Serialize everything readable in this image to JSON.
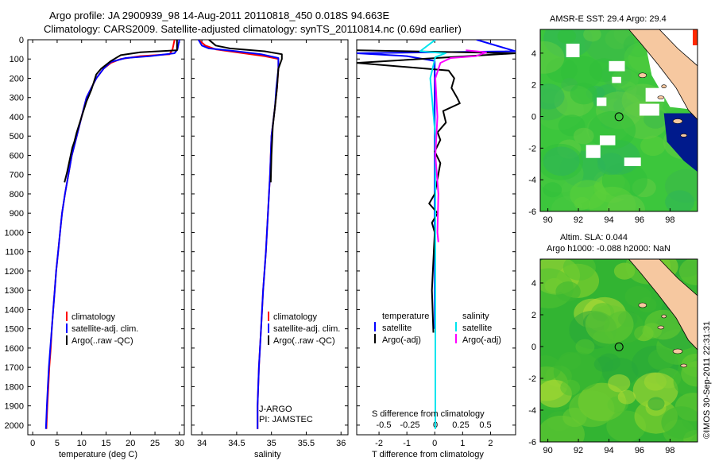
{
  "header": {
    "line1": "Argo profile: JA 2900939_98 14-Aug-2011 20110818_450 0.018S 94.663E",
    "line2": "Climatology: CARS2009. Satellite-adjusted climatology: synTS_20110814.nc (0.69d earlier)"
  },
  "colors": {
    "climatology": "#ff0000",
    "satellite": "#0000ff",
    "argo": "#000000",
    "satellite_s": "#00e5ee",
    "argo_s": "#ff00ff",
    "land": "#f6c8a0",
    "ocean_green": "#40c840",
    "cold": "#001a8c"
  },
  "chart_data": [
    {
      "type": "line",
      "name": "temperature",
      "xlabel": "temperature (deg C)",
      "ylabel": "",
      "xlim": [
        -1,
        31
      ],
      "ylim": [
        2050,
        0
      ],
      "xticks": [
        "0",
        "5",
        "10",
        "15",
        "20",
        "25",
        "30"
      ],
      "yticks": [
        "0",
        "100",
        "200",
        "300",
        "400",
        "500",
        "600",
        "700",
        "800",
        "900",
        "1000",
        "1100",
        "1200",
        "1300",
        "1400",
        "1500",
        "1600",
        "1700",
        "1800",
        "1900",
        "2000"
      ],
      "legend": [
        "climatology",
        "satellite-adj. clim.",
        "Argo(..raw -QC)"
      ],
      "series": [
        {
          "name": "climatology",
          "points": [
            [
              29,
              0
            ],
            [
              28.6,
              50
            ],
            [
              28,
              75
            ],
            [
              22,
              85
            ],
            [
              18,
              100
            ],
            [
              16,
              120
            ],
            [
              14.5,
              150
            ],
            [
              13,
              200
            ],
            [
              12,
              250
            ],
            [
              11,
              300
            ],
            [
              10,
              400
            ],
            [
              9,
              500
            ],
            [
              8,
              600
            ],
            [
              7.3,
              700
            ],
            [
              6.6,
              800
            ],
            [
              6,
              900
            ],
            [
              5.6,
              1000
            ],
            [
              5.2,
              1100
            ],
            [
              4.8,
              1200
            ],
            [
              4.5,
              1300
            ],
            [
              4.2,
              1400
            ],
            [
              3.9,
              1500
            ],
            [
              3.7,
              1600
            ],
            [
              3.4,
              1700
            ],
            [
              3.2,
              1800
            ],
            [
              3,
              1900
            ],
            [
              2.8,
              2020
            ]
          ]
        },
        {
          "name": "satellite-adj. clim.",
          "points": [
            [
              30,
              0
            ],
            [
              29.6,
              50
            ],
            [
              29,
              70
            ],
            [
              24,
              85
            ],
            [
              19,
              95
            ],
            [
              16,
              115
            ],
            [
              14.5,
              150
            ],
            [
              13,
              200
            ],
            [
              12,
              250
            ],
            [
              11,
              300
            ],
            [
              10,
              400
            ],
            [
              9,
              500
            ],
            [
              8,
              600
            ],
            [
              7.3,
              700
            ],
            [
              6.6,
              800
            ],
            [
              6,
              900
            ],
            [
              5.6,
              1000
            ],
            [
              5.2,
              1100
            ],
            [
              4.8,
              1200
            ],
            [
              4.5,
              1300
            ],
            [
              4.2,
              1400
            ],
            [
              3.9,
              1500
            ],
            [
              3.6,
              1600
            ],
            [
              3.3,
              1700
            ],
            [
              3.1,
              1800
            ],
            [
              2.9,
              1900
            ],
            [
              2.7,
              2020
            ]
          ]
        },
        {
          "name": "Argo(..raw -QC)",
          "points": [
            [
              29.5,
              0
            ],
            [
              29.5,
              55
            ],
            [
              22,
              65
            ],
            [
              18,
              80
            ],
            [
              16,
              110
            ],
            [
              14,
              150
            ],
            [
              13,
              180
            ],
            [
              12.5,
              220
            ],
            [
              12,
              260
            ],
            [
              11,
              320
            ],
            [
              10,
              400
            ],
            [
              9,
              480
            ],
            [
              8.5,
              530
            ],
            [
              8.1,
              560
            ],
            [
              7.6,
              620
            ],
            [
              7,
              690
            ],
            [
              6.5,
              740
            ]
          ]
        }
      ]
    },
    {
      "type": "line",
      "name": "salinity",
      "xlabel": "salinity",
      "ylabel": "",
      "xlim": [
        33.85,
        36.1
      ],
      "ylim": [
        2050,
        0
      ],
      "xticks": [
        "34",
        "34.5",
        "35",
        "35.5",
        "36"
      ],
      "legend": [
        "climatology",
        "satellite-adj. clim.",
        "Argo(..raw -QC)"
      ],
      "annotations": [
        "J-ARGO",
        "PI: JAMSTEC"
      ],
      "series": [
        {
          "name": "climatology",
          "points": [
            [
              33.95,
              0
            ],
            [
              34.05,
              30
            ],
            [
              34.2,
              50
            ],
            [
              34.6,
              70
            ],
            [
              34.9,
              85
            ],
            [
              35.1,
              100
            ],
            [
              35.1,
              150
            ],
            [
              35.08,
              250
            ],
            [
              35.05,
              350
            ],
            [
              35.0,
              500
            ],
            [
              34.98,
              700
            ],
            [
              34.95,
              900
            ],
            [
              34.92,
              1100
            ],
            [
              34.88,
              1300
            ],
            [
              34.85,
              1500
            ],
            [
              34.82,
              1700
            ],
            [
              34.8,
              1900
            ],
            [
              34.8,
              2020
            ]
          ]
        },
        {
          "name": "satellite-adj. clim.",
          "points": [
            [
              33.95,
              0
            ],
            [
              34.0,
              30
            ],
            [
              34.1,
              45
            ],
            [
              34.5,
              60
            ],
            [
              34.85,
              75
            ],
            [
              35.1,
              95
            ],
            [
              35.1,
              150
            ],
            [
              35.07,
              250
            ],
            [
              35.05,
              350
            ],
            [
              35.0,
              500
            ],
            [
              34.98,
              700
            ],
            [
              34.95,
              900
            ],
            [
              34.92,
              1100
            ],
            [
              34.88,
              1300
            ],
            [
              34.85,
              1500
            ],
            [
              34.82,
              1700
            ],
            [
              34.8,
              1900
            ],
            [
              34.8,
              2020
            ]
          ]
        },
        {
          "name": "Argo(..raw -QC)",
          "points": [
            [
              34.1,
              0
            ],
            [
              34.2,
              30
            ],
            [
              34.4,
              45
            ],
            [
              34.9,
              60
            ],
            [
              35.15,
              75
            ],
            [
              35.15,
              100
            ],
            [
              35.1,
              150
            ],
            [
              35.08,
              250
            ],
            [
              35.05,
              350
            ],
            [
              35.02,
              450
            ],
            [
              35.0,
              600
            ],
            [
              34.99,
              740
            ]
          ]
        }
      ]
    },
    {
      "type": "line",
      "name": "difference",
      "xlabel": "T difference from climatology",
      "x2label": "S difference from climatology",
      "xlim": [
        -2.8,
        2.9
      ],
      "ylim": [
        2050,
        0
      ],
      "xticks": [
        "-2",
        "-1",
        "0",
        "1",
        "2"
      ],
      "x2ticks": [
        "-0.5",
        "-0.25",
        "0",
        "0.25",
        "0.5"
      ],
      "legend": [
        "temperature",
        "satellite",
        "Argo(-adj)",
        "salinity",
        "satellite",
        "Argo(-adj)"
      ],
      "series": [
        {
          "name": "T satellite",
          "points": [
            [
              1.5,
              0
            ],
            [
              2.9,
              60
            ],
            [
              -2.8,
              70
            ],
            [
              -1,
              85
            ],
            [
              0,
              110
            ],
            [
              0,
              300
            ],
            [
              0,
              700
            ],
            [
              0,
              1000
            ],
            [
              0,
              1300
            ],
            [
              0,
              1500
            ]
          ]
        },
        {
          "name": "T Argo(-adj)",
          "points": [
            [
              -2.8,
              55
            ],
            [
              2.9,
              70
            ],
            [
              -2.8,
              120
            ],
            [
              0.5,
              160
            ],
            [
              0.7,
              200
            ],
            [
              0.6,
              250
            ],
            [
              0.8,
              300
            ],
            [
              0.9,
              330
            ],
            [
              0.3,
              370
            ],
            [
              0.4,
              430
            ],
            [
              0.1,
              480
            ],
            [
              0.2,
              520
            ],
            [
              0.0,
              580
            ],
            [
              0.2,
              640
            ],
            [
              0.1,
              720
            ],
            [
              0.0,
              800
            ],
            [
              -0.2,
              850
            ],
            [
              0.1,
              900
            ],
            [
              -0.1,
              950
            ],
            [
              0.0,
              1000
            ],
            [
              -0.1,
              1300
            ],
            [
              -0.05,
              1520
            ]
          ]
        },
        {
          "name": "S satellite",
          "points": [
            [
              0,
              0
            ],
            [
              -0.15,
              60
            ],
            [
              0.1,
              70
            ],
            [
              0.0,
              90
            ],
            [
              -0.05,
              200
            ],
            [
              0.0,
              500
            ],
            [
              0.0,
              1000
            ],
            [
              0.0,
              1500
            ],
            [
              0.0,
              2020
            ]
          ]
        },
        {
          "name": "S Argo(-adj)",
          "points": [
            [
              0.3,
              55
            ],
            [
              0.5,
              65
            ],
            [
              0.4,
              85
            ],
            [
              0.15,
              95
            ],
            [
              0.05,
              120
            ],
            [
              0.0,
              200
            ],
            [
              0.02,
              400
            ],
            [
              0.0,
              600
            ],
            [
              0.03,
              800
            ],
            [
              0.02,
              1000
            ],
            [
              0.03,
              1050
            ]
          ]
        }
      ]
    },
    {
      "type": "heatmap",
      "name": "sst_map",
      "title": "AMSR-E SST: 29.4  Argo: 29.4",
      "xticks": [
        "90",
        "92",
        "94",
        "96",
        "98"
      ],
      "yticks": [
        "4",
        "2",
        "0",
        "-2",
        "-4",
        "-6"
      ],
      "xlim": [
        89.5,
        99.8
      ],
      "ylim": [
        -6,
        5.5
      ],
      "marker": {
        "lon": 94.66,
        "lat": -0.02
      }
    },
    {
      "type": "heatmap",
      "name": "sla_map",
      "title": "Altim. SLA: 0.044",
      "subtitle": "Argo h1000: -0.088 h2000: NaN",
      "xticks": [
        "90",
        "92",
        "94",
        "96",
        "98"
      ],
      "yticks": [
        "4",
        "2",
        "0",
        "-2",
        "-4",
        "-6"
      ],
      "xlim": [
        89.5,
        99.8
      ],
      "ylim": [
        -6,
        5.5
      ],
      "marker": {
        "lon": 94.66,
        "lat": -0.02
      }
    }
  ],
  "credit": "©IMOS 30-Sep-2011 22:31:31"
}
